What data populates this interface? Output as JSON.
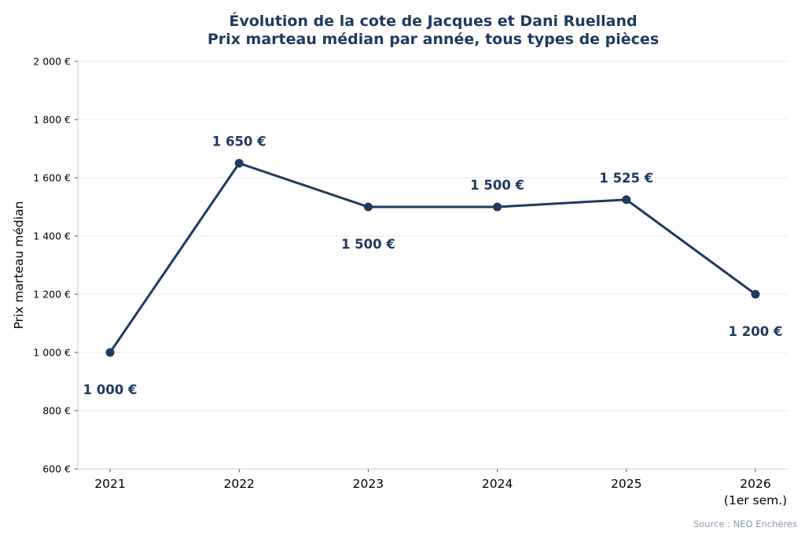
{
  "chart_data": {
    "type": "line",
    "title": "Évolution de la cote de Jacques et Dani Ruelland",
    "subtitle": "Prix marteau médian par année, tous types de pièces",
    "ylabel": "Prix marteau médian",
    "xlabel": "",
    "categories": [
      "2021",
      "2022",
      "2023",
      "2024",
      "2025",
      "2026"
    ],
    "category_sublabels": [
      "",
      "",
      "",
      "",
      "",
      "(1er sem.)"
    ],
    "values": [
      1000,
      1650,
      1500,
      1500,
      1525,
      1200
    ],
    "data_labels": [
      "1 000 €",
      "1 650 €",
      "1 500 €",
      "1 500 €",
      "1 525 €",
      "1 200 €"
    ],
    "data_label_positions": [
      "below",
      "above",
      "below",
      "above",
      "above",
      "below"
    ],
    "ylim": [
      600,
      2000
    ],
    "yticks": [
      600,
      800,
      1000,
      1200,
      1400,
      1600,
      1800,
      2000
    ],
    "ytick_labels": [
      "600 €",
      "800 €",
      "1 000 €",
      "1 200 €",
      "1 400 €",
      "1 600 €",
      "1 800 €",
      "2 000 €"
    ],
    "grid": "horizontal",
    "color": "#1f3a5f",
    "source": "Source : NEO Enchères"
  }
}
